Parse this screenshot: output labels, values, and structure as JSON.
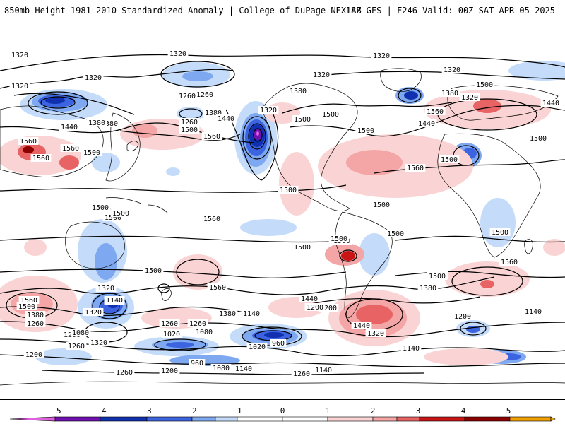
{
  "header": {
    "title_left": "850mb Height 1981–2010 Standardized Anomaly | College of DuPage NEXLAB",
    "title_right": "18Z GFS | F246 Valid: 00Z SAT APR 05 2025"
  },
  "colorbar": {
    "ticks": [
      "−5",
      "−4",
      "−3",
      "−2",
      "−1",
      "0",
      "1",
      "2",
      "3",
      "4",
      "5"
    ],
    "colors": {
      "m5": "#e060e0",
      "m4": "#7010b0",
      "m3": "#1030b0",
      "m2": "#3c64e0",
      "m15": "#7ea8f0",
      "m1": "#c4dcfa",
      "p1": "#fad4d4",
      "p15": "#f4a6a6",
      "p2": "#e86464",
      "p3": "#c81414",
      "p4": "#8c0000",
      "p5": "#f0a000"
    }
  },
  "contour_labels": [
    "1320",
    "1320",
    "1320",
    "1320",
    "1320",
    "1260",
    "1320",
    "1320",
    "1260",
    "1260",
    "1380",
    "1440",
    "1380",
    "1500",
    "1380",
    "1320",
    "1320",
    "1380",
    "1440",
    "1500",
    "1560",
    "1440",
    "1560",
    "1500",
    "1440",
    "1560",
    "1560",
    "1380",
    "1500",
    "1500",
    "1500",
    "1500",
    "1560",
    "1500",
    "1500",
    "1560",
    "1500",
    "1500",
    "1500",
    "1500",
    "1500",
    "1500",
    "1500",
    "1500",
    "1500",
    "1560",
    "1500",
    "1500",
    "1500",
    "1560",
    "1560",
    "1560",
    "1500",
    "1380",
    "1320",
    "1320",
    "1380",
    "1260",
    "1440",
    "1140",
    "1260",
    "1380",
    "1200",
    "1200",
    "1260",
    "1200",
    "1080",
    "1140",
    "1320",
    "1200",
    "1260",
    "1020",
    "1080",
    "1020",
    "960",
    "1140",
    "1440",
    "1320",
    "1200",
    "1140",
    "1260",
    "960",
    "1080",
    "1140",
    "1260",
    "1200",
    "1260",
    "1140"
  ]
}
